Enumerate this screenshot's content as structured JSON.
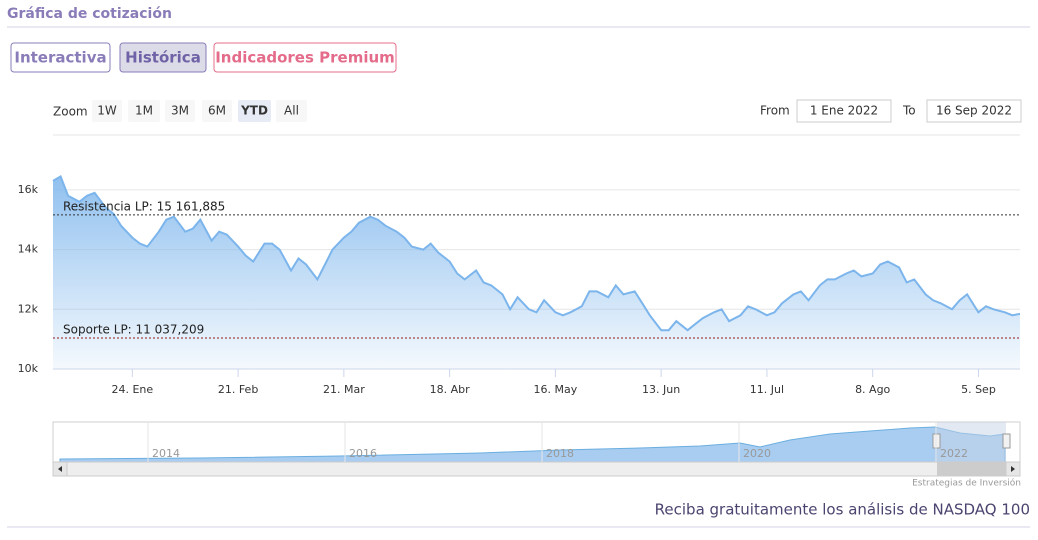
{
  "header": {
    "title": "Gráfica de cotización"
  },
  "tabs": [
    "Interactiva",
    "Histórica",
    "Indicadores Premium"
  ],
  "zoom": {
    "label": "Zoom",
    "buttons": [
      "1W",
      "1M",
      "3M",
      "6M",
      "YTD",
      "All"
    ],
    "selected": "YTD"
  },
  "range": {
    "from_label": "From",
    "from": "1 Ene 2022",
    "to_label": "To",
    "to": "16 Sep 2022"
  },
  "chart_data": {
    "type": "area",
    "color": "#7cb5ec",
    "x": [
      3,
      5,
      7,
      10,
      12,
      14,
      17,
      19,
      21,
      24,
      26,
      28,
      31,
      33,
      35,
      38,
      40,
      42,
      45,
      47,
      49,
      52,
      54,
      56,
      59,
      61,
      63,
      66,
      68,
      70,
      73,
      75,
      77,
      80,
      82,
      84,
      87,
      89,
      91,
      94,
      96,
      98,
      101,
      103,
      105,
      108,
      110,
      112,
      115,
      117,
      119,
      122,
      124,
      126,
      129,
      131,
      133,
      136,
      138,
      140,
      143,
      145,
      147,
      150,
      152,
      154,
      157,
      159,
      161,
      164,
      166,
      168,
      171,
      173,
      175,
      178,
      180,
      182,
      185,
      187,
      189,
      192,
      194,
      196,
      199,
      201,
      203,
      206,
      208,
      210,
      213,
      215,
      217,
      220,
      222,
      224,
      227,
      229,
      231,
      234,
      236,
      238,
      241,
      243,
      245,
      248,
      250,
      252,
      255,
      257,
      259
    ],
    "values": [
      16300,
      16450,
      15800,
      15600,
      15800,
      15900,
      15400,
      15200,
      14800,
      14400,
      14200,
      14100,
      14600,
      15000,
      15100,
      14600,
      14700,
      15000,
      14300,
      14600,
      14500,
      14100,
      13800,
      13600,
      14200,
      14200,
      14000,
      13300,
      13700,
      13500,
      13000,
      13500,
      14000,
      14400,
      14600,
      14900,
      15100,
      15000,
      14800,
      14600,
      14400,
      14100,
      14000,
      14200,
      13900,
      13600,
      13200,
      13000,
      13300,
      12900,
      12800,
      12500,
      12000,
      12400,
      12000,
      11900,
      12300,
      11900,
      11800,
      11900,
      12100,
      12600,
      12600,
      12400,
      12800,
      12500,
      12600,
      12200,
      11800,
      11300,
      11300,
      11600,
      11300,
      11500,
      11700,
      11900,
      12000,
      11600,
      11800,
      12100,
      12000,
      11800,
      11900,
      12200,
      12500,
      12600,
      12300,
      12800,
      13000,
      13000,
      13200,
      13300,
      13100,
      13200,
      13500,
      13600,
      13400,
      12900,
      13000,
      12500,
      12300,
      12200,
      12000,
      12300,
      12500,
      11900,
      12100,
      12000,
      11900,
      11800,
      11850
    ],
    "xlim": [
      3,
      259
    ],
    "xticks": [
      {
        "value": 24,
        "label": "24. Ene"
      },
      {
        "value": 52,
        "label": "21. Feb"
      },
      {
        "value": 80,
        "label": "21. Mar"
      },
      {
        "value": 108,
        "label": "18. Abr"
      },
      {
        "value": 136,
        "label": "16. May"
      },
      {
        "value": 164,
        "label": "13. Jun"
      },
      {
        "value": 192,
        "label": "11. Jul"
      },
      {
        "value": 220,
        "label": "8. Ago"
      },
      {
        "value": 248,
        "label": "5. Sep"
      }
    ],
    "ylim": [
      10000,
      17000
    ],
    "yticks": [
      {
        "value": 10000,
        "label": "10k"
      },
      {
        "value": 12000,
        "label": "12k"
      },
      {
        "value": 14000,
        "label": "14k"
      },
      {
        "value": 16000,
        "label": "16k"
      }
    ],
    "grid": true,
    "reference_lines": [
      {
        "value": 15161.885,
        "label": "Resistencia LP: 15 161,885",
        "color": "#333333"
      },
      {
        "value": 11037.209,
        "label": "Soporte LP: 11 037,209",
        "color": "#8b1a1a"
      }
    ]
  },
  "navigator": {
    "years": [
      "2014",
      "2016",
      "2018",
      "2020",
      "2022"
    ]
  },
  "credit": "Estrategias de Inversión",
  "footer": "Reciba gratuitamente los análisis de NASDAQ 100"
}
